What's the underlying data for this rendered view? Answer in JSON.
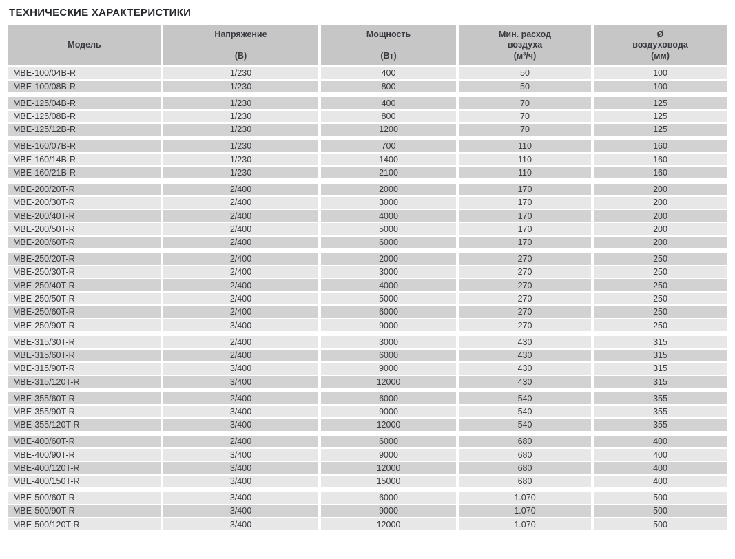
{
  "page_title": "ТЕХНИЧЕСКИЕ ХАРАКТЕРИСТИКИ",
  "colors": {
    "page_bg": "#ffffff",
    "title_text": "#26282e",
    "header_bg": "#c6c6c6",
    "row_light": "#e7e7e7",
    "row_dark": "#d2d2d2",
    "cell_text": "#393b40"
  },
  "table": {
    "columns": [
      {
        "id": "model",
        "lines": [
          "Модель"
        ]
      },
      {
        "id": "voltage",
        "lines": [
          "Напряжение",
          "",
          "(В)"
        ]
      },
      {
        "id": "power",
        "lines": [
          "Мощность",
          "",
          "(Вт)"
        ]
      },
      {
        "id": "airflow",
        "lines": [
          "Мин. расход",
          "воздуха",
          "(м³/ч)"
        ]
      },
      {
        "id": "diameter",
        "lines": [
          "Ø",
          "воздуховода",
          "(мм)"
        ]
      }
    ],
    "groups": [
      {
        "rows": [
          {
            "model": "MBE-100/04B-R",
            "voltage": "1/230",
            "power": "400",
            "airflow": "50",
            "diameter": "100",
            "tone": "light"
          },
          {
            "model": "MBE-100/08B-R",
            "voltage": "1/230",
            "power": "800",
            "airflow": "50",
            "diameter": "100",
            "tone": "dark"
          }
        ]
      },
      {
        "rows": [
          {
            "model": "MBE-125/04B-R",
            "voltage": "1/230",
            "power": "400",
            "airflow": "70",
            "diameter": "125",
            "tone": "dark"
          },
          {
            "model": "MBE-125/08B-R",
            "voltage": "1/230",
            "power": "800",
            "airflow": "70",
            "diameter": "125",
            "tone": "light"
          },
          {
            "model": "MBE-125/12B-R",
            "voltage": "1/230",
            "power": "1200",
            "airflow": "70",
            "diameter": "125",
            "tone": "dark"
          }
        ]
      },
      {
        "rows": [
          {
            "model": "MBE-160/07B-R",
            "voltage": "1/230",
            "power": "700",
            "airflow": "110",
            "diameter": "160",
            "tone": "dark"
          },
          {
            "model": "MBE-160/14B-R",
            "voltage": "1/230",
            "power": "1400",
            "airflow": "110",
            "diameter": "160",
            "tone": "light"
          },
          {
            "model": "MBE-160/21B-R",
            "voltage": "1/230",
            "power": "2100",
            "airflow": "110",
            "diameter": "160",
            "tone": "dark"
          }
        ]
      },
      {
        "rows": [
          {
            "model": "MBE-200/20T-R",
            "voltage": "2/400",
            "power": "2000",
            "airflow": "170",
            "diameter": "200",
            "tone": "dark"
          },
          {
            "model": "MBE-200/30T-R",
            "voltage": "2/400",
            "power": "3000",
            "airflow": "170",
            "diameter": "200",
            "tone": "light"
          },
          {
            "model": "MBE-200/40T-R",
            "voltage": "2/400",
            "power": "4000",
            "airflow": "170",
            "diameter": "200",
            "tone": "dark"
          },
          {
            "model": "MBE-200/50T-R",
            "voltage": "2/400",
            "power": "5000",
            "airflow": "170",
            "diameter": "200",
            "tone": "light"
          },
          {
            "model": "MBE-200/60T-R",
            "voltage": "2/400",
            "power": "6000",
            "airflow": "170",
            "diameter": "200",
            "tone": "dark"
          }
        ]
      },
      {
        "rows": [
          {
            "model": "MBE-250/20T-R",
            "voltage": "2/400",
            "power": "2000",
            "airflow": "270",
            "diameter": "250",
            "tone": "dark"
          },
          {
            "model": "MBE-250/30T-R",
            "voltage": "2/400",
            "power": "3000",
            "airflow": "270",
            "diameter": "250",
            "tone": "light"
          },
          {
            "model": "MBE-250/40T-R",
            "voltage": "2/400",
            "power": "4000",
            "airflow": "270",
            "diameter": "250",
            "tone": "dark"
          },
          {
            "model": "MBE-250/50T-R",
            "voltage": "2/400",
            "power": "5000",
            "airflow": "270",
            "diameter": "250",
            "tone": "light"
          },
          {
            "model": "MBE-250/60T-R",
            "voltage": "2/400",
            "power": "6000",
            "airflow": "270",
            "diameter": "250",
            "tone": "dark"
          },
          {
            "model": "MBE-250/90T-R",
            "voltage": "3/400",
            "power": "9000",
            "airflow": "270",
            "diameter": "250",
            "tone": "light"
          }
        ]
      },
      {
        "rows": [
          {
            "model": "MBE-315/30T-R",
            "voltage": "2/400",
            "power": "3000",
            "airflow": "430",
            "diameter": "315",
            "tone": "light"
          },
          {
            "model": "MBE-315/60T-R",
            "voltage": "2/400",
            "power": "6000",
            "airflow": "430",
            "diameter": "315",
            "tone": "dark"
          },
          {
            "model": "MBE-315/90T-R",
            "voltage": "3/400",
            "power": "9000",
            "airflow": "430",
            "diameter": "315",
            "tone": "light"
          },
          {
            "model": "MBE-315/120T-R",
            "voltage": "3/400",
            "power": "12000",
            "airflow": "430",
            "diameter": "315",
            "tone": "dark"
          }
        ]
      },
      {
        "rows": [
          {
            "model": "MBE-355/60T-R",
            "voltage": "2/400",
            "power": "6000",
            "airflow": "540",
            "diameter": "355",
            "tone": "dark"
          },
          {
            "model": "MBE-355/90T-R",
            "voltage": "3/400",
            "power": "9000",
            "airflow": "540",
            "diameter": "355",
            "tone": "light"
          },
          {
            "model": "MBE-355/120T-R",
            "voltage": "3/400",
            "power": "12000",
            "airflow": "540",
            "diameter": "355",
            "tone": "dark"
          }
        ]
      },
      {
        "rows": [
          {
            "model": "MBE-400/60T-R",
            "voltage": "2/400",
            "power": "6000",
            "airflow": "680",
            "diameter": "400",
            "tone": "dark"
          },
          {
            "model": "MBE-400/90T-R",
            "voltage": "3/400",
            "power": "9000",
            "airflow": "680",
            "diameter": "400",
            "tone": "light"
          },
          {
            "model": "MBE-400/120T-R",
            "voltage": "3/400",
            "power": "12000",
            "airflow": "680",
            "diameter": "400",
            "tone": "dark"
          },
          {
            "model": "MBE-400/150T-R",
            "voltage": "3/400",
            "power": "15000",
            "airflow": "680",
            "diameter": "400",
            "tone": "light"
          }
        ]
      },
      {
        "rows": [
          {
            "model": "MBE-500/60T-R",
            "voltage": "3/400",
            "power": "6000",
            "airflow": "1.070",
            "diameter": "500",
            "tone": "light"
          },
          {
            "model": "MBE-500/90T-R",
            "voltage": "3/400",
            "power": "9000",
            "airflow": "1.070",
            "diameter": "500",
            "tone": "dark"
          },
          {
            "model": "MBE-500/120T-R",
            "voltage": "3/400",
            "power": "12000",
            "airflow": "1.070",
            "diameter": "500",
            "tone": "light"
          }
        ]
      }
    ]
  }
}
